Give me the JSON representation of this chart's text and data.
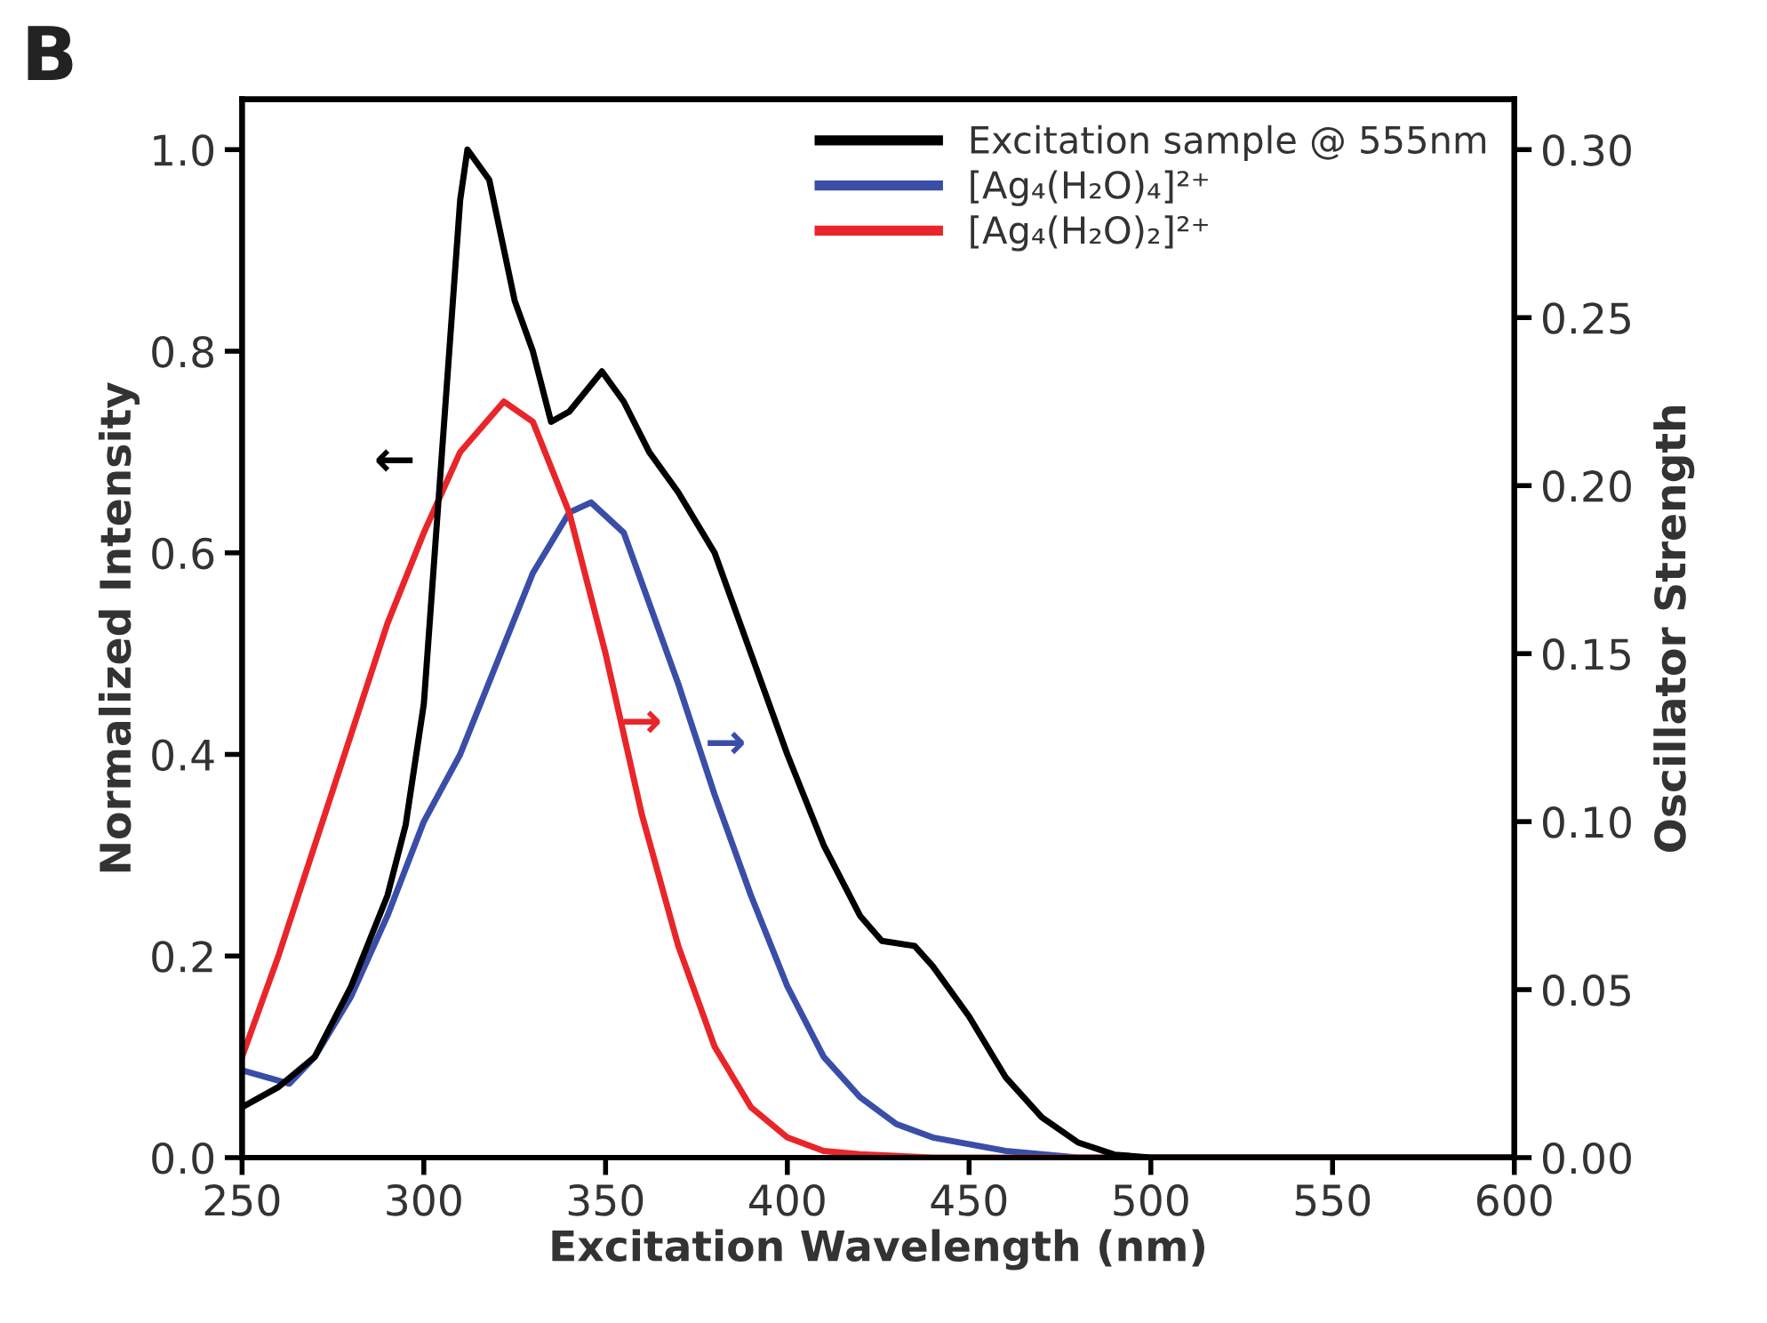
{
  "chart_data": {
    "type": "line",
    "xlabel": "Excitation Wavelength (nm)",
    "ylabel": "Normalized Intensity",
    "y2label": "Oscillator Strength",
    "xlim": [
      250,
      600
    ],
    "xticks": [
      250,
      300,
      350,
      400,
      450,
      500,
      550,
      600
    ],
    "ylim": [
      0,
      1.05
    ],
    "yticks": [
      {
        "value": 0,
        "label": "0.0"
      },
      0.2,
      0.4,
      0.6,
      0.8,
      {
        "value": 1,
        "label": "1.0"
      }
    ],
    "y2lim": [
      0,
      0.315
    ],
    "y2ticks": [
      {
        "value": 0,
        "label": "0.00"
      },
      0.05,
      {
        "value": 0.1,
        "label": "0.10"
      },
      0.15,
      {
        "value": 0.2,
        "label": "0.20"
      },
      0.25,
      {
        "value": 0.3,
        "label": "0.30"
      }
    ],
    "grid": false,
    "legend": "top right",
    "marker": "none",
    "line_style": "solid",
    "annotations": [
      "B",
      "←",
      "→",
      "→"
    ],
    "series": [
      {
        "name": "Excitation sample @ 555nm",
        "color": "#000000",
        "x": [
          250,
          260,
          270,
          280,
          290,
          295,
          300,
          305,
          310,
          312,
          318,
          325,
          330,
          335,
          340,
          349,
          355,
          362,
          370,
          380,
          390,
          400,
          410,
          420,
          426,
          435,
          440,
          450,
          460,
          470,
          480,
          490,
          500,
          600
        ],
        "values": [
          0.05,
          0.07,
          0.1,
          0.17,
          0.26,
          0.33,
          0.45,
          0.7,
          0.95,
          1.0,
          0.97,
          0.85,
          0.8,
          0.73,
          0.74,
          0.78,
          0.75,
          0.7,
          0.66,
          0.6,
          0.5,
          0.4,
          0.31,
          0.24,
          0.215,
          0.21,
          0.19,
          0.14,
          0.08,
          0.04,
          0.015,
          0.003,
          0.0,
          0.0
        ]
      },
      {
        "name": "[Ag₄(H₂O)₄]²⁺",
        "color": "#3a4ea8",
        "axis": "y2",
        "x": [
          250,
          263,
          270,
          280,
          290,
          300,
          310,
          320,
          330,
          340,
          346,
          355,
          360,
          370,
          380,
          390,
          400,
          410,
          420,
          430,
          440,
          460,
          480,
          500,
          600
        ],
        "values": [
          0.026,
          0.022,
          0.03,
          0.048,
          0.072,
          0.1,
          0.12,
          0.147,
          0.174,
          0.192,
          0.195,
          0.186,
          0.171,
          0.141,
          0.108,
          0.078,
          0.051,
          0.03,
          0.018,
          0.01,
          0.006,
          0.002,
          0.0,
          0.0,
          0.0
        ]
      },
      {
        "name": "[Ag₄(H₂O)₂]²⁺",
        "color": "#e8262a",
        "axis": "y2",
        "x": [
          250,
          260,
          270,
          280,
          290,
          300,
          310,
          322,
          330,
          340,
          350,
          360,
          370,
          380,
          390,
          400,
          410,
          420,
          440,
          500,
          600
        ],
        "values": [
          0.03,
          0.06,
          0.093,
          0.126,
          0.159,
          0.186,
          0.21,
          0.225,
          0.219,
          0.192,
          0.15,
          0.102,
          0.063,
          0.033,
          0.015,
          0.006,
          0.002,
          0.001,
          0.0,
          0.0,
          0.0
        ]
      }
    ]
  }
}
